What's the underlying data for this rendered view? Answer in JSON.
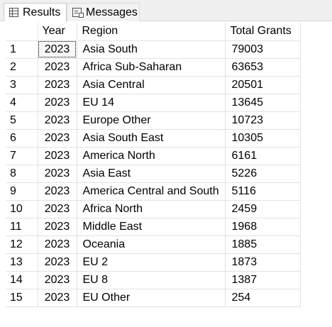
{
  "tabs": [
    {
      "label": "Results",
      "icon": "grid-icon",
      "active": true
    },
    {
      "label": "Messages",
      "icon": "messages-icon",
      "active": false
    }
  ],
  "grid": {
    "columns": [
      "",
      "Year",
      "Region",
      "Total Grants"
    ],
    "rows": [
      {
        "n": "1",
        "year": "2023",
        "region": "Asia South",
        "total": "79003"
      },
      {
        "n": "2",
        "year": "2023",
        "region": "Africa Sub-Saharan",
        "total": "63653"
      },
      {
        "n": "3",
        "year": "2023",
        "region": "Asia Central",
        "total": "20501"
      },
      {
        "n": "4",
        "year": "2023",
        "region": "EU 14",
        "total": "13645"
      },
      {
        "n": "5",
        "year": "2023",
        "region": "Europe Other",
        "total": "10723"
      },
      {
        "n": "6",
        "year": "2023",
        "region": "Asia South East",
        "total": "10305"
      },
      {
        "n": "7",
        "year": "2023",
        "region": "America North",
        "total": "6161"
      },
      {
        "n": "8",
        "year": "2023",
        "region": "Asia East",
        "total": "5226"
      },
      {
        "n": "9",
        "year": "2023",
        "region": "America Central and South",
        "total": "5116"
      },
      {
        "n": "10",
        "year": "2023",
        "region": "Africa North",
        "total": "2459"
      },
      {
        "n": "11",
        "year": "2023",
        "region": "Middle East",
        "total": "1968"
      },
      {
        "n": "12",
        "year": "2023",
        "region": "Oceania",
        "total": "1885"
      },
      {
        "n": "13",
        "year": "2023",
        "region": "EU 2",
        "total": "1873"
      },
      {
        "n": "14",
        "year": "2023",
        "region": "EU 8",
        "total": "1387"
      },
      {
        "n": "15",
        "year": "2023",
        "region": "EU Other",
        "total": "254"
      }
    ]
  }
}
